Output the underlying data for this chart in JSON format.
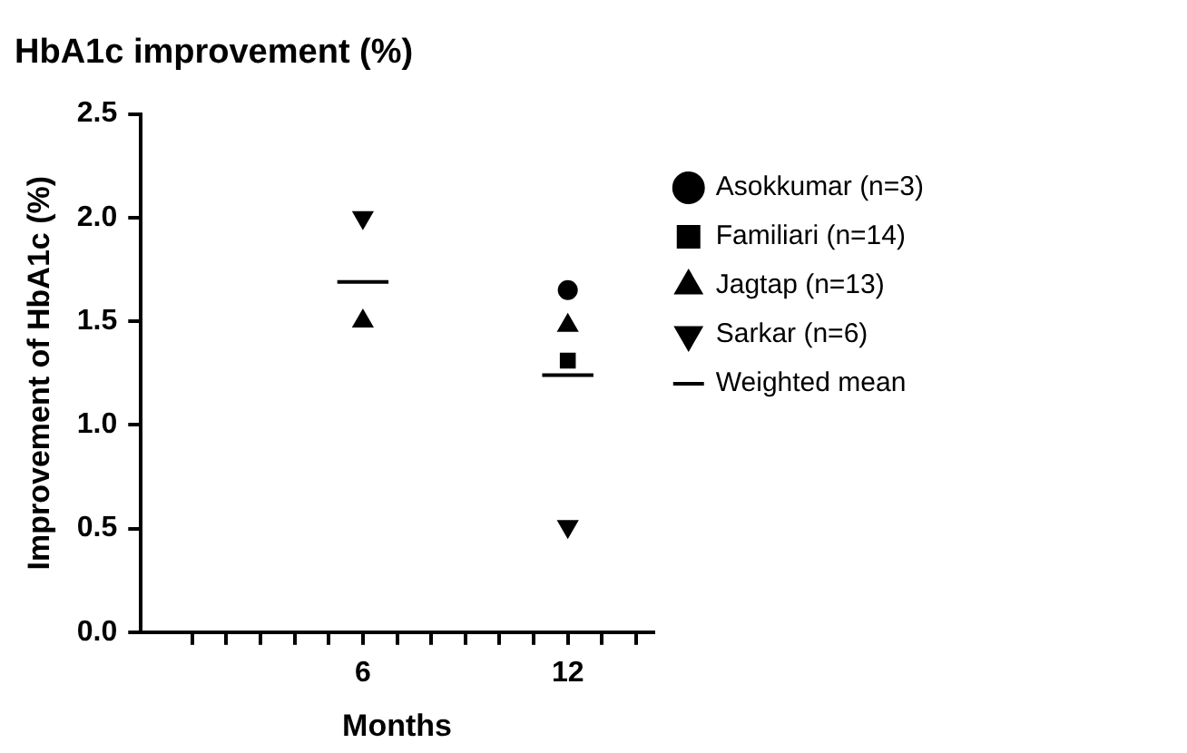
{
  "chart_data": {
    "type": "scatter",
    "title": "HbA1c improvement (%)",
    "xlabel": "Months",
    "ylabel": "Improvement of HbA1c (%)",
    "xlim": [
      -0.5,
      14.5
    ],
    "xticks": [
      {
        "value": 1,
        "label": null
      },
      {
        "value": 2,
        "label": null
      },
      {
        "value": 3,
        "label": null
      },
      {
        "value": 4,
        "label": null
      },
      {
        "value": 5,
        "label": null
      },
      6,
      {
        "value": 7,
        "label": null
      },
      {
        "value": 8,
        "label": null
      },
      {
        "value": 9,
        "label": null
      },
      {
        "value": 10,
        "label": null
      },
      {
        "value": 11,
        "label": null
      },
      12,
      {
        "value": 13,
        "label": null
      },
      {
        "value": 14,
        "label": null
      }
    ],
    "ylim": [
      0,
      2.5
    ],
    "yticks": [
      {
        "value": 0,
        "label": "0.0"
      },
      {
        "value": 0.5,
        "label": "0.5"
      },
      {
        "value": 1,
        "label": "1.0"
      },
      {
        "value": 1.5,
        "label": "1.5"
      },
      {
        "value": 2,
        "label": "2.0"
      },
      {
        "value": 2.5,
        "label": "2.5"
      }
    ],
    "grid": false,
    "legend": "right",
    "series": [
      {
        "name": "Asokkumar (n=3)",
        "color": "#000000",
        "marker": "circle",
        "x": [
          12
        ],
        "values": [
          1.65
        ]
      },
      {
        "name": "Familiari (n=14)",
        "color": "#000000",
        "marker": "square",
        "x": [
          12
        ],
        "values": [
          1.31
        ]
      },
      {
        "name": "Jagtap (n=13)",
        "color": "#000000",
        "marker": "triangle",
        "x": [
          6,
          12
        ],
        "values": [
          1.5,
          1.48
        ]
      },
      {
        "name": "Sarkar (n=6)",
        "color": "#000000",
        "marker": "triangle-down",
        "x": [
          6,
          12
        ],
        "values": [
          2.0,
          0.51
        ]
      },
      {
        "name": "Weighted mean",
        "type": "line",
        "color": "#000000",
        "marker": "none",
        "line_style": "solid",
        "x": [
          5.25,
          6.75,
          9,
          11.25,
          12.75
        ],
        "values": [
          1.69,
          1.69,
          null,
          1.24,
          1.24
        ]
      }
    ]
  }
}
